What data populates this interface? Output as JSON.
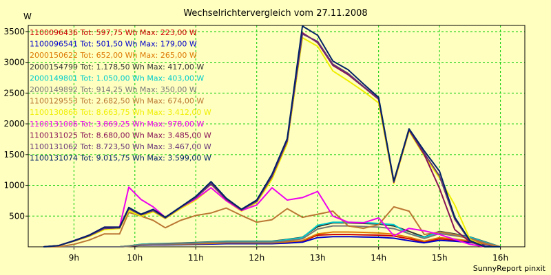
{
  "chart_data": {
    "type": "line",
    "title": "Wechselrichtervergleich vom 27.11.2008",
    "ylabel": "W",
    "xlabel": "",
    "footer": "SunnyReport pinxit",
    "ylim": [
      0,
      3600
    ],
    "xlim": [
      8.25,
      16.4
    ],
    "grid": true,
    "yticks": [
      500,
      1000,
      1500,
      2000,
      2500,
      3000,
      3500
    ],
    "yticklabels": [
      "500",
      "1000",
      "1500",
      "2000",
      "2500",
      "3000",
      "3500"
    ],
    "xticks": [
      9,
      10,
      11,
      12,
      13,
      14,
      15,
      16
    ],
    "xticklabels": [
      "9h",
      "10h",
      "11h",
      "12h",
      "13h",
      "14h",
      "15h",
      "16h"
    ],
    "x": [
      8.5,
      8.75,
      9.0,
      9.25,
      9.5,
      9.75,
      9.9,
      10.1,
      10.3,
      10.5,
      10.75,
      11.0,
      11.25,
      11.5,
      11.75,
      12.0,
      12.25,
      12.5,
      12.75,
      13.0,
      13.25,
      13.5,
      13.75,
      14.0,
      14.25,
      14.5,
      14.75,
      15.0,
      15.25,
      15.5,
      15.75,
      16.0
    ],
    "series": [
      {
        "name": "1100096436",
        "legend": "1100096436 Tot: 597,75 Wh Max: 223,00 W",
        "color": "#cc0000",
        "values": [
          0,
          0,
          0,
          0,
          0,
          0,
          10,
          30,
          40,
          40,
          40,
          45,
          50,
          60,
          60,
          60,
          60,
          75,
          90,
          190,
          200,
          200,
          195,
          190,
          175,
          130,
          80,
          130,
          110,
          85,
          40,
          0
        ]
      },
      {
        "name": "1100096541",
        "legend": "1100096541 Tot: 501,50 Wh Max: 179,00 W",
        "color": "#0000cc",
        "values": [
          0,
          0,
          0,
          0,
          0,
          0,
          10,
          25,
          30,
          30,
          35,
          40,
          45,
          50,
          50,
          50,
          50,
          60,
          75,
          150,
          165,
          165,
          160,
          155,
          140,
          100,
          65,
          105,
          90,
          70,
          30,
          0
        ]
      },
      {
        "name": "2000150622",
        "legend": "2000150622 Tot: 652,00 Wh Max: 265,00 W",
        "color": "#dd7700",
        "values": [
          0,
          0,
          0,
          0,
          0,
          0,
          10,
          30,
          40,
          40,
          45,
          50,
          55,
          65,
          65,
          65,
          65,
          80,
          100,
          210,
          240,
          240,
          235,
          225,
          205,
          155,
          90,
          150,
          125,
          95,
          45,
          0
        ]
      },
      {
        "name": "2000154799",
        "legend": "2000154799 Tot: 1.178,50 Wh Max: 417,00 W",
        "color": "#333333",
        "values": [
          0,
          0,
          0,
          0,
          0,
          0,
          15,
          40,
          50,
          55,
          60,
          70,
          80,
          90,
          90,
          90,
          90,
          120,
          155,
          330,
          390,
          390,
          380,
          370,
          340,
          250,
          160,
          250,
          210,
          160,
          80,
          0
        ]
      },
      {
        "name": "2000149801",
        "legend": "2000149801 Tot: 1.050,00 Wh Max: 403,00 W",
        "color": "#00cccc",
        "values": [
          0,
          0,
          0,
          0,
          0,
          0,
          15,
          40,
          50,
          50,
          55,
          65,
          75,
          85,
          85,
          85,
          85,
          115,
          150,
          350,
          400,
          400,
          395,
          380,
          360,
          210,
          155,
          240,
          200,
          155,
          75,
          0
        ]
      },
      {
        "name": "2000149892",
        "legend": "2000149892 Tot: 914,25 Wh Max: 350,00 W",
        "color": "#777777",
        "values": [
          0,
          0,
          0,
          0,
          0,
          0,
          12,
          35,
          45,
          45,
          50,
          60,
          70,
          75,
          75,
          75,
          75,
          100,
          130,
          290,
          340,
          340,
          330,
          320,
          295,
          215,
          135,
          215,
          180,
          140,
          65,
          0
        ]
      },
      {
        "name": "1100129553",
        "legend": "1100129553 Tot: 2.682,50 Wh Max: 674,00 W",
        "color": "#bb7733",
        "values": [
          0,
          0,
          40,
          110,
          210,
          210,
          560,
          500,
          430,
          310,
          430,
          510,
          550,
          630,
          510,
          400,
          440,
          620,
          480,
          530,
          580,
          340,
          300,
          360,
          650,
          580,
          200,
          240,
          200,
          130,
          50,
          0
        ]
      },
      {
        "name": "1100130866",
        "legend": "1100130866 Tot: 8.663,75 Wh Max: 3.412,00 W",
        "color": "#eeee00",
        "values": [
          0,
          20,
          90,
          170,
          280,
          300,
          590,
          500,
          570,
          460,
          620,
          760,
          960,
          750,
          580,
          720,
          1100,
          1680,
          3400,
          3260,
          2860,
          2700,
          2530,
          2340,
          1030,
          1880,
          1480,
          1120,
          680,
          120,
          0,
          0
        ]
      },
      {
        "name": "1100131006",
        "legend": "1100131006 Tot: 3.869,25 Wh Max: 978,00 W",
        "color": "#ee00ee",
        "values": [
          0,
          20,
          100,
          190,
          320,
          320,
          970,
          770,
          650,
          480,
          640,
          780,
          960,
          750,
          590,
          680,
          960,
          760,
          800,
          900,
          500,
          400,
          390,
          470,
          180,
          300,
          260,
          200,
          120,
          40,
          0,
          0
        ]
      },
      {
        "name": "1100131025",
        "legend": "1100131025 Tot: 8.680,00 Wh Max: 3.485,00 W",
        "color": "#881155",
        "values": [
          0,
          20,
          95,
          180,
          300,
          310,
          620,
          520,
          590,
          470,
          640,
          800,
          1020,
          770,
          600,
          740,
          1140,
          1720,
          3480,
          3320,
          2950,
          2800,
          2600,
          2400,
          1050,
          1900,
          1500,
          950,
          280,
          80,
          0,
          0
        ]
      },
      {
        "name": "1100131062",
        "legend": "1100131062 Tot: 8.723,50 Wh Max: 3.467,00 W",
        "color": "#663377",
        "values": [
          0,
          20,
          95,
          180,
          300,
          310,
          620,
          520,
          590,
          470,
          640,
          800,
          1030,
          780,
          600,
          740,
          1150,
          1730,
          3460,
          3340,
          2970,
          2820,
          2610,
          2410,
          1060,
          1910,
          1520,
          1150,
          450,
          90,
          0,
          0
        ]
      },
      {
        "name": "1100131074",
        "legend": "1100131074 Tot: 9.015,75 Wh Max: 3.599,00 W",
        "color": "#002266",
        "values": [
          0,
          20,
          100,
          190,
          320,
          320,
          640,
          530,
          610,
          480,
          650,
          820,
          1060,
          790,
          610,
          760,
          1180,
          1760,
          3590,
          3440,
          3020,
          2880,
          2650,
          2430,
          1070,
          1920,
          1560,
          1230,
          480,
          100,
          0,
          0
        ]
      }
    ]
  }
}
